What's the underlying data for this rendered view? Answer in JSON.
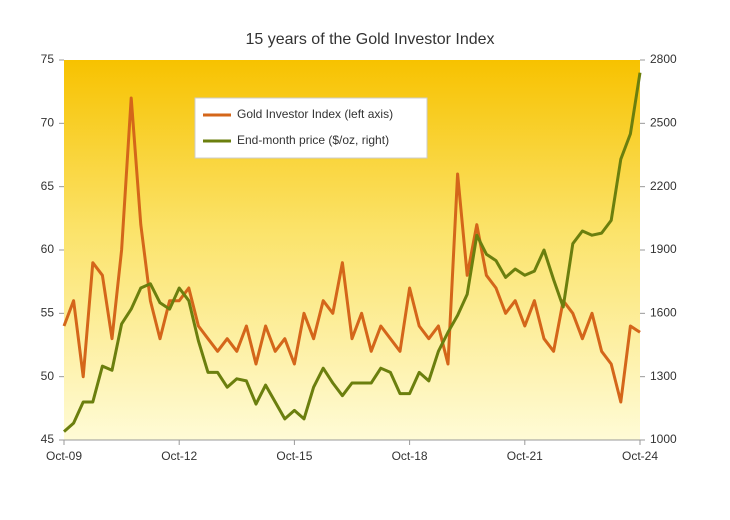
{
  "chart_data": {
    "type": "line",
    "title": "15 years of the Gold Investor Index",
    "categories": [
      "Oct-09",
      null,
      null,
      null,
      null,
      null,
      null,
      null,
      null,
      null,
      null,
      null,
      "Oct-12",
      null,
      null,
      null,
      null,
      null,
      null,
      null,
      null,
      null,
      null,
      null,
      "Oct-15",
      null,
      null,
      null,
      null,
      null,
      null,
      null,
      null,
      null,
      null,
      null,
      "Oct-18",
      null,
      null,
      null,
      null,
      null,
      null,
      null,
      null,
      null,
      null,
      null,
      "Oct-21",
      null,
      null,
      null,
      null,
      null,
      null,
      null,
      null,
      null,
      null,
      null,
      "Oct-24"
    ],
    "series": [
      {
        "name": "Gold Investor Index (left axis)",
        "color": "#d4661a",
        "axis": "y",
        "values": [
          54,
          56,
          50,
          59,
          58,
          53,
          60,
          72,
          62,
          56,
          53,
          56,
          56,
          57,
          54,
          53,
          52,
          53,
          52,
          54,
          51,
          54,
          52,
          53,
          51,
          55,
          53,
          56,
          55,
          59,
          53,
          55,
          52,
          54,
          53,
          52,
          57,
          54,
          53,
          54,
          51,
          66,
          58,
          62,
          58,
          57,
          55,
          56,
          54,
          56,
          53,
          52,
          56,
          55,
          53,
          55,
          52,
          51,
          48,
          54,
          53.5
        ]
      },
      {
        "name": "End-month price ($/oz, right)",
        "color": "#6b7f0e",
        "axis": "y2",
        "values": [
          1040,
          1080,
          1180,
          1180,
          1350,
          1330,
          1550,
          1620,
          1720,
          1740,
          1650,
          1620,
          1720,
          1660,
          1470,
          1320,
          1320,
          1250,
          1290,
          1280,
          1170,
          1260,
          1180,
          1100,
          1140,
          1100,
          1250,
          1340,
          1270,
          1210,
          1270,
          1270,
          1270,
          1340,
          1320,
          1220,
          1220,
          1320,
          1280,
          1420,
          1510,
          1590,
          1690,
          1970,
          1880,
          1850,
          1770,
          1810,
          1780,
          1800,
          1900,
          1760,
          1630,
          1930,
          1990,
          1970,
          1980,
          2040,
          2330,
          2450,
          2740
        ]
      }
    ],
    "ylim": [
      45,
      75
    ],
    "yticks": [
      45,
      50,
      55,
      60,
      65,
      70,
      75
    ],
    "y2lim": [
      1000,
      2800
    ],
    "y2ticks": [
      1000,
      1300,
      1600,
      1900,
      2200,
      2500,
      2800
    ],
    "legend": "top-left"
  }
}
